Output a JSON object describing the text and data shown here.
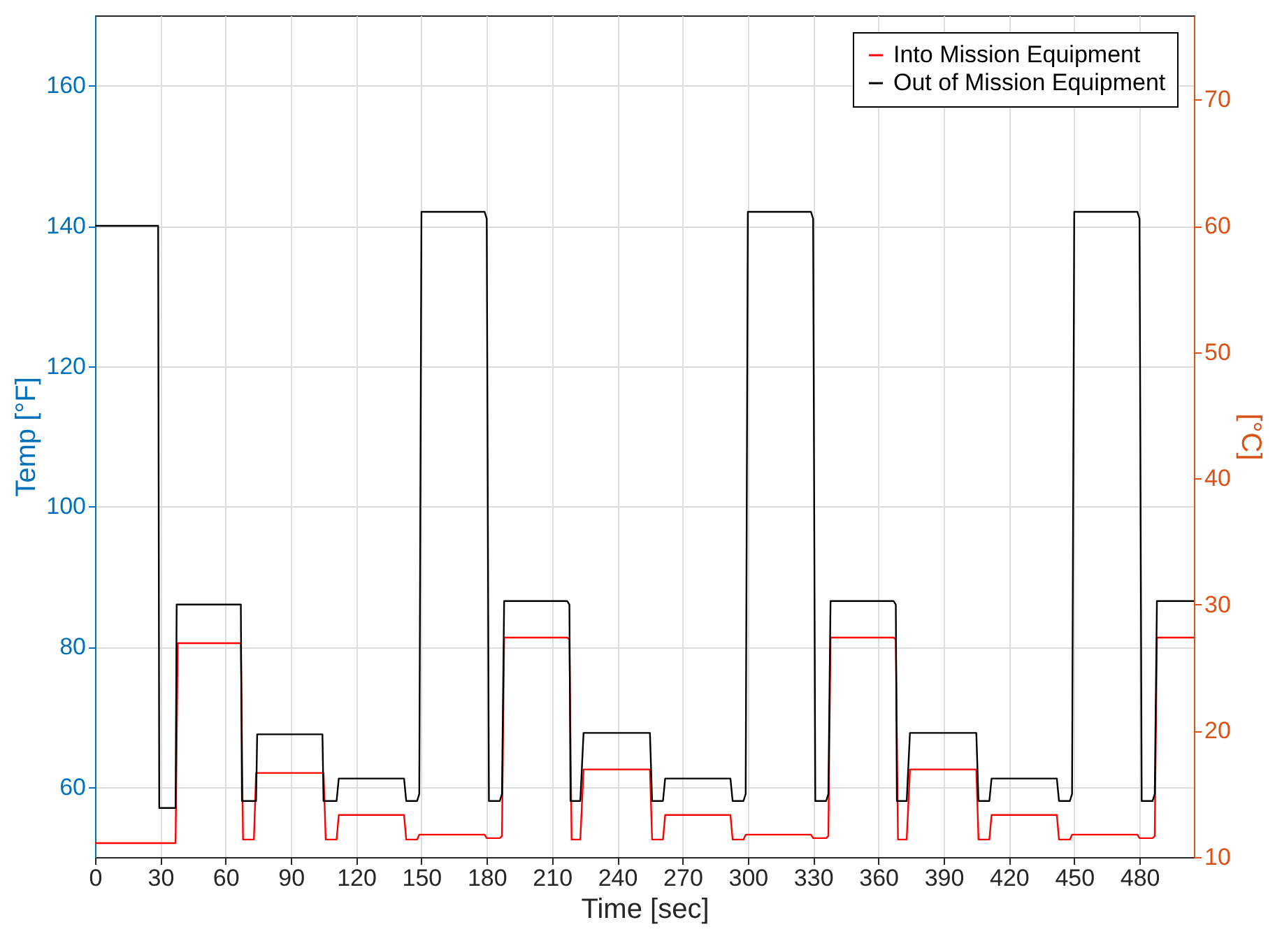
{
  "chart_data": {
    "type": "line",
    "xlabel": "Time [sec]",
    "ylabel": "Temp [°F]",
    "y2label": "[°C]",
    "xlim": [
      0,
      505
    ],
    "xticks": [
      0,
      30,
      60,
      90,
      120,
      150,
      180,
      210,
      240,
      270,
      300,
      330,
      360,
      390,
      420,
      450,
      480
    ],
    "ylim": [
      50,
      170
    ],
    "yticks": [
      60,
      80,
      100,
      120,
      140,
      160
    ],
    "y2lim": [
      10,
      76.67
    ],
    "y2ticks": [
      10,
      20,
      30,
      40,
      50,
      60,
      70
    ],
    "grid": true,
    "legend": "top right",
    "marker": "none",
    "line_style": "solid",
    "series": [
      {
        "name": "Into Mission Equipment",
        "color": "#ff0000",
        "x": [
          0,
          37,
          38,
          67,
          68,
          73,
          74,
          105,
          106,
          111,
          112,
          142,
          143,
          148,
          149,
          179,
          180,
          186,
          187,
          188,
          217,
          218,
          219,
          223,
          224.5,
          255,
          256,
          261,
          262,
          292,
          293,
          298,
          299,
          329,
          330,
          336,
          337,
          338,
          367,
          368,
          369,
          373,
          374.5,
          405,
          406,
          411,
          412,
          442,
          443,
          448,
          449,
          479,
          480,
          486,
          487,
          488,
          505
        ],
        "values": [
          52,
          52,
          80.5,
          80.5,
          52.5,
          52.5,
          62,
          62,
          52.5,
          52.5,
          56,
          56,
          52.5,
          52.5,
          53.2,
          53.2,
          52.7,
          52.7,
          53,
          81.3,
          81.3,
          81,
          52.5,
          52.5,
          62.5,
          62.5,
          52.5,
          52.5,
          56,
          56,
          52.5,
          52.5,
          53.2,
          53.2,
          52.7,
          52.7,
          53,
          81.3,
          81.3,
          81,
          52.5,
          52.5,
          62.5,
          62.5,
          52.5,
          52.5,
          56,
          56,
          52.5,
          52.5,
          53.2,
          53.2,
          52.7,
          52.7,
          53,
          81.3,
          81.3
        ]
      },
      {
        "name": "Out of Mission Equipment",
        "color": "#000000",
        "x": [
          0,
          29,
          29.5,
          37,
          37.5,
          67,
          67.5,
          74,
          74.5,
          104.5,
          105,
          111,
          112,
          142,
          143,
          148,
          149,
          150,
          179,
          180,
          181,
          186,
          187,
          188,
          217,
          218,
          218.5,
          223,
          224.5,
          255,
          256,
          261,
          262,
          292,
          293,
          298,
          299,
          300,
          329,
          330,
          331,
          336,
          337,
          338,
          367,
          368,
          368.5,
          373,
          374.5,
          405,
          406,
          411,
          412,
          442,
          443,
          448,
          449,
          450,
          479,
          480,
          481,
          486,
          487,
          488,
          505
        ],
        "values": [
          140,
          140,
          57,
          57,
          86,
          86,
          58,
          58,
          67.5,
          67.5,
          58,
          58,
          61.2,
          61.2,
          58,
          58,
          59,
          142,
          142,
          141,
          58,
          58,
          59,
          86.5,
          86.5,
          86,
          58,
          58,
          67.7,
          67.7,
          58,
          58,
          61.2,
          61.2,
          58,
          58,
          59,
          142,
          142,
          141,
          58,
          58,
          59,
          86.5,
          86.5,
          86,
          58,
          58,
          67.7,
          67.7,
          58,
          58,
          61.2,
          61.2,
          58,
          58,
          59,
          142,
          142,
          141,
          58,
          58,
          59,
          86.5,
          86.5
        ]
      }
    ]
  }
}
